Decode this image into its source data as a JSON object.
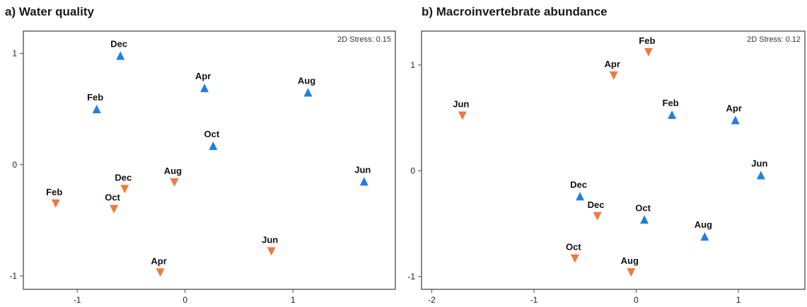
{
  "chart_data": [
    {
      "type": "scatter",
      "title": "a) Water quality",
      "stress_label": "2D Stress: 0.15",
      "xlim": [
        -1.5,
        1.95
      ],
      "ylim": [
        -1.12,
        1.2
      ],
      "xticks": [
        -1,
        0,
        1
      ],
      "yticks": [
        -1,
        0,
        1
      ],
      "xtick_labels": [
        "-1",
        "0",
        "1"
      ],
      "ytick_labels": [
        "-1",
        "0",
        "1"
      ],
      "colors": {
        "up": "#1f7fe0",
        "down": "#f07a3e"
      },
      "series": [
        {
          "marker": "triangle-up",
          "points": [
            {
              "label": "Dec",
              "x": -0.6,
              "y": 0.98
            },
            {
              "label": "Feb",
              "x": -0.82,
              "y": 0.5
            },
            {
              "label": "Apr",
              "x": 0.18,
              "y": 0.69
            },
            {
              "label": "Aug",
              "x": 1.14,
              "y": 0.65
            },
            {
              "label": "Oct",
              "x": 0.26,
              "y": 0.17
            },
            {
              "label": "Jun",
              "x": 1.66,
              "y": -0.15
            }
          ]
        },
        {
          "marker": "triangle-down",
          "points": [
            {
              "label": "Feb",
              "x": -1.2,
              "y": -0.35
            },
            {
              "label": "Dec",
              "x": -0.56,
              "y": -0.22
            },
            {
              "label": "Oct",
              "x": -0.66,
              "y": -0.4
            },
            {
              "label": "Aug",
              "x": -0.1,
              "y": -0.16
            },
            {
              "label": "Jun",
              "x": 0.8,
              "y": -0.78
            },
            {
              "label": "Apr",
              "x": -0.23,
              "y": -0.97
            }
          ]
        }
      ]
    },
    {
      "type": "scatter",
      "title": "b) Macroinvertebrate abundance",
      "stress_label": "2D Stress: 0.12",
      "xlim": [
        -2.1,
        1.65
      ],
      "ylim": [
        -1.12,
        1.32
      ],
      "xticks": [
        -2,
        -1,
        0,
        1
      ],
      "yticks": [
        -1,
        0,
        1
      ],
      "xtick_labels": [
        "-2",
        "-1",
        "0",
        "1"
      ],
      "ytick_labels": [
        "-1",
        "0",
        "1"
      ],
      "colors": {
        "up": "#1f7fe0",
        "down": "#f07a3e"
      },
      "series": [
        {
          "marker": "triangle-down",
          "points": [
            {
              "label": "Feb",
              "x": 0.12,
              "y": 1.12
            },
            {
              "label": "Apr",
              "x": -0.22,
              "y": 0.9
            },
            {
              "label": "Jun",
              "x": -1.7,
              "y": 0.52
            },
            {
              "label": "Dec",
              "x": -0.38,
              "y": -0.43
            },
            {
              "label": "Oct",
              "x": -0.6,
              "y": -0.83
            },
            {
              "label": "Aug",
              "x": -0.05,
              "y": -0.96
            }
          ]
        },
        {
          "marker": "triangle-up",
          "points": [
            {
              "label": "Feb",
              "x": 0.35,
              "y": 0.53
            },
            {
              "label": "Apr",
              "x": 0.97,
              "y": 0.48
            },
            {
              "label": "Jun",
              "x": 1.22,
              "y": -0.04
            },
            {
              "label": "Dec",
              "x": -0.55,
              "y": -0.24
            },
            {
              "label": "Oct",
              "x": 0.08,
              "y": -0.46
            },
            {
              "label": "Aug",
              "x": 0.67,
              "y": -0.62
            }
          ]
        }
      ]
    }
  ]
}
